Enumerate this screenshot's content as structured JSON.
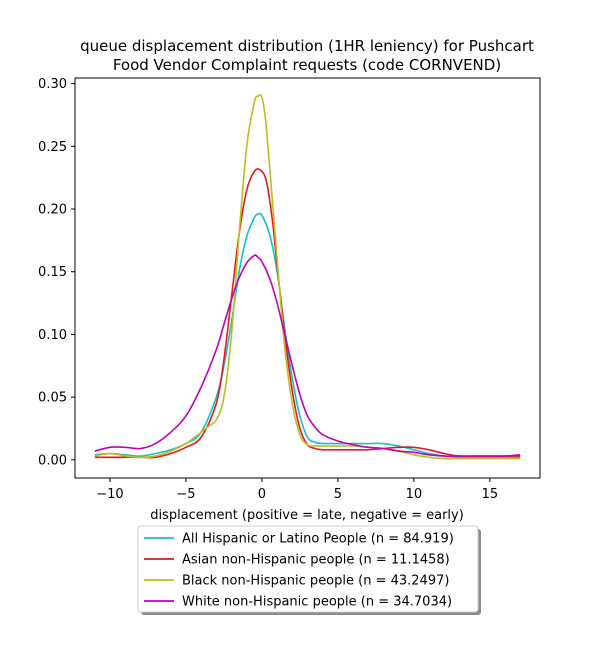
{
  "chart_data": {
    "type": "line",
    "title": "queue displacement distribution (1HR leniency) for Pushcart\nFood Vendor Complaint  requests (code CORNVEND)",
    "xlabel": "displacement (positive = late, negative = early)",
    "ylabel": "",
    "xlim": [
      -12.3,
      18.3
    ],
    "ylim": [
      -0.0145,
      0.3045
    ],
    "x_ticks": [
      -10,
      -5,
      0,
      5,
      10,
      15
    ],
    "y_ticks": [
      0.0,
      0.05,
      0.1,
      0.15,
      0.2,
      0.25,
      0.3
    ],
    "x_tick_labels": [
      "−10",
      "−5",
      "0",
      "5",
      "10",
      "15"
    ],
    "y_tick_labels": [
      "0.00",
      "0.05",
      "0.10",
      "0.15",
      "0.20",
      "0.25",
      "0.30"
    ],
    "grid": false,
    "legend_position": "below-center",
    "series": [
      {
        "name": "All Hispanic or Latino People (n = 84.919)",
        "color": "#17becf",
        "x": [
          -11,
          -10,
          -9,
          -8,
          -7,
          -6,
          -5,
          -4,
          -3,
          -2.5,
          -2,
          -1.5,
          -1,
          -0.5,
          -0.25,
          0,
          0.5,
          1,
          1.5,
          2,
          2.5,
          3,
          3.5,
          4,
          5,
          6,
          7,
          8,
          9,
          10,
          11,
          12,
          13,
          14,
          15,
          16,
          17
        ],
        "y": [
          0.004,
          0.005,
          0.004,
          0.003,
          0.005,
          0.008,
          0.013,
          0.022,
          0.05,
          0.075,
          0.11,
          0.15,
          0.178,
          0.193,
          0.196,
          0.195,
          0.18,
          0.15,
          0.105,
          0.065,
          0.035,
          0.018,
          0.014,
          0.013,
          0.013,
          0.013,
          0.013,
          0.013,
          0.011,
          0.008,
          0.005,
          0.003,
          0.002,
          0.002,
          0.002,
          0.002,
          0.002
        ]
      },
      {
        "name": "Asian non-Hispanic people (n = 11.1458)",
        "color": "#e41a1c",
        "x": [
          -11,
          -10,
          -9,
          -8,
          -7,
          -6,
          -5,
          -4,
          -3,
          -2.5,
          -2,
          -1.5,
          -1,
          -0.5,
          -0.1,
          0.3,
          0.7,
          1,
          1.5,
          2,
          2.5,
          3,
          3.5,
          4,
          5,
          6,
          7,
          8,
          9,
          10,
          11,
          12,
          13,
          14,
          15,
          16,
          17
        ],
        "y": [
          0.002,
          0.002,
          0.002,
          0.002,
          0.002,
          0.005,
          0.01,
          0.018,
          0.045,
          0.08,
          0.13,
          0.18,
          0.215,
          0.23,
          0.231,
          0.222,
          0.19,
          0.155,
          0.1,
          0.055,
          0.025,
          0.012,
          0.009,
          0.008,
          0.008,
          0.008,
          0.008,
          0.009,
          0.01,
          0.01,
          0.008,
          0.005,
          0.003,
          0.003,
          0.003,
          0.003,
          0.003
        ]
      },
      {
        "name": "Black non-Hispanic people (n = 43.2497)",
        "color": "#bcbd22",
        "x": [
          -11,
          -10,
          -9,
          -8,
          -7,
          -6,
          -5,
          -4,
          -3.5,
          -3,
          -2.5,
          -2,
          -1.5,
          -1,
          -0.5,
          -0.25,
          0,
          0.25,
          0.5,
          1,
          1.5,
          2,
          2.5,
          3,
          3.5,
          4,
          5,
          6,
          7,
          8,
          9,
          10,
          11,
          12,
          13,
          14,
          15,
          16,
          17
        ],
        "y": [
          0.003,
          0.005,
          0.003,
          0.002,
          0.003,
          0.007,
          0.013,
          0.022,
          0.027,
          0.032,
          0.05,
          0.1,
          0.18,
          0.25,
          0.285,
          0.29,
          0.289,
          0.27,
          0.235,
          0.16,
          0.09,
          0.045,
          0.02,
          0.012,
          0.011,
          0.011,
          0.011,
          0.011,
          0.01,
          0.009,
          0.007,
          0.004,
          0.002,
          0.001,
          0.001,
          0.001,
          0.001,
          0.001,
          0.001
        ]
      },
      {
        "name": "White non-Hispanic people (n = 34.7034)",
        "color": "#bf00bf",
        "x": [
          -11,
          -10,
          -9,
          -8,
          -7,
          -6,
          -5,
          -4,
          -3,
          -2.5,
          -2,
          -1.5,
          -1,
          -0.5,
          -0.3,
          0,
          0.5,
          1,
          1.5,
          2,
          2.5,
          3,
          3.5,
          4,
          5,
          6,
          7,
          8,
          9,
          10,
          11,
          12,
          13,
          14,
          15,
          16,
          17
        ],
        "y": [
          0.007,
          0.01,
          0.01,
          0.009,
          0.013,
          0.022,
          0.035,
          0.058,
          0.088,
          0.108,
          0.128,
          0.145,
          0.157,
          0.163,
          0.162,
          0.158,
          0.145,
          0.125,
          0.1,
          0.075,
          0.052,
          0.035,
          0.026,
          0.02,
          0.015,
          0.012,
          0.01,
          0.009,
          0.007,
          0.006,
          0.004,
          0.003,
          0.003,
          0.003,
          0.003,
          0.003,
          0.004
        ]
      }
    ]
  }
}
